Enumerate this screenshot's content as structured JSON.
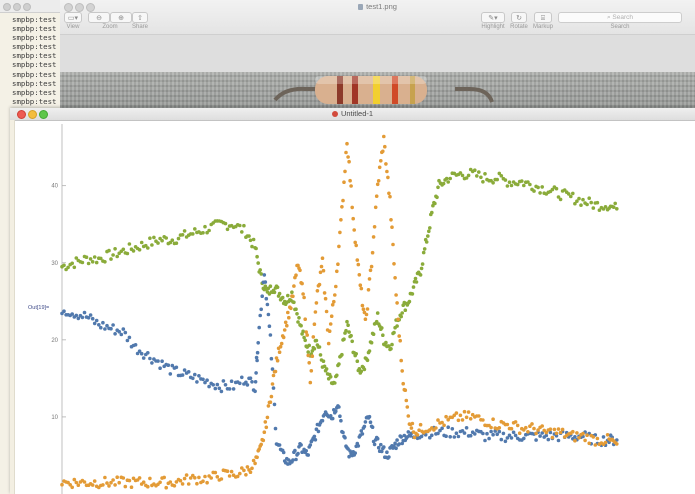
{
  "terminal": {
    "lines": [
      "smpbp:test $",
      "smpbp:test $",
      "smpbp:test $",
      "smpbp:test $",
      "smpbp:test $",
      "smpbp:test $",
      "smpbp:test $",
      "smpbp:test $",
      "smpbp:test $",
      "smpbp:test $"
    ]
  },
  "preview": {
    "title": "test1.png",
    "toolbar": {
      "view_label": "View",
      "zoom_label": "Zoom",
      "share_label": "Share",
      "highlight_label": "Highlight",
      "rotate_label": "Rotate",
      "markup_label": "Markup",
      "search_label": "Search",
      "search_placeholder": "Search"
    }
  },
  "notebook": {
    "title": "Untitled-1",
    "out_label": "Out[19]="
  },
  "chart_data": {
    "type": "scatter",
    "ylim": [
      0,
      48
    ],
    "xlim": [
      0,
      1000
    ],
    "yticks": [
      10,
      20,
      30,
      40
    ],
    "ytick_labels": [
      "10",
      "20",
      "30",
      "40"
    ],
    "colors": {
      "green": "#8aab3a",
      "blue": "#5179ad",
      "orange": "#e39b36"
    },
    "series": [
      {
        "color": "green",
        "values": [
          [
            0,
            29.5
          ],
          [
            20,
            30
          ],
          [
            40,
            30.5
          ],
          [
            60,
            30.5
          ],
          [
            80,
            31
          ],
          [
            100,
            31.5
          ],
          [
            120,
            32
          ],
          [
            140,
            32.5
          ],
          [
            160,
            33
          ],
          [
            180,
            33
          ],
          [
            200,
            33.5
          ],
          [
            220,
            34
          ],
          [
            240,
            34.5
          ],
          [
            260,
            35
          ],
          [
            280,
            35
          ],
          [
            300,
            34
          ],
          [
            315,
            32
          ],
          [
            325,
            28
          ],
          [
            335,
            26
          ],
          [
            345,
            27
          ],
          [
            355,
            26
          ],
          [
            365,
            25
          ],
          [
            375,
            26
          ],
          [
            385,
            23
          ],
          [
            395,
            20
          ],
          [
            405,
            18.5
          ],
          [
            415,
            20
          ],
          [
            425,
            17
          ],
          [
            435,
            15
          ],
          [
            445,
            14
          ],
          [
            455,
            18
          ],
          [
            465,
            22
          ],
          [
            475,
            19
          ],
          [
            485,
            16
          ],
          [
            495,
            17
          ],
          [
            505,
            20
          ],
          [
            515,
            23
          ],
          [
            525,
            20
          ],
          [
            535,
            19
          ],
          [
            545,
            22
          ],
          [
            555,
            24
          ],
          [
            565,
            25
          ],
          [
            575,
            27
          ],
          [
            585,
            29
          ],
          [
            595,
            33
          ],
          [
            605,
            37
          ],
          [
            615,
            40
          ],
          [
            630,
            41
          ],
          [
            650,
            41.5
          ],
          [
            670,
            41.5
          ],
          [
            690,
            41
          ],
          [
            710,
            41
          ],
          [
            730,
            40.5
          ],
          [
            750,
            40.5
          ],
          [
            770,
            40
          ],
          [
            790,
            39.5
          ],
          [
            810,
            39
          ],
          [
            830,
            38.5
          ],
          [
            850,
            38
          ],
          [
            870,
            37.5
          ],
          [
            890,
            37.5
          ],
          [
            905,
            37
          ]
        ]
      },
      {
        "color": "blue",
        "values": [
          [
            0,
            24
          ],
          [
            20,
            23.5
          ],
          [
            40,
            23
          ],
          [
            60,
            22
          ],
          [
            80,
            21.5
          ],
          [
            100,
            21
          ],
          [
            120,
            19
          ],
          [
            140,
            18
          ],
          [
            160,
            17
          ],
          [
            180,
            16
          ],
          [
            200,
            15.5
          ],
          [
            220,
            15
          ],
          [
            240,
            14.5
          ],
          [
            260,
            14
          ],
          [
            280,
            14
          ],
          [
            300,
            15
          ],
          [
            315,
            14
          ],
          [
            320,
            20
          ],
          [
            330,
            29
          ],
          [
            340,
            20
          ],
          [
            350,
            7
          ],
          [
            360,
            5
          ],
          [
            370,
            4
          ],
          [
            380,
            5
          ],
          [
            390,
            6
          ],
          [
            400,
            5
          ],
          [
            410,
            7
          ],
          [
            420,
            9
          ],
          [
            430,
            11
          ],
          [
            440,
            10
          ],
          [
            450,
            12
          ],
          [
            460,
            7
          ],
          [
            470,
            5
          ],
          [
            480,
            6
          ],
          [
            490,
            8
          ],
          [
            500,
            10
          ],
          [
            510,
            7
          ],
          [
            520,
            6
          ],
          [
            530,
            5
          ],
          [
            540,
            6
          ],
          [
            550,
            7
          ],
          [
            560,
            7.5
          ],
          [
            570,
            7.5
          ],
          [
            590,
            8
          ],
          [
            610,
            8
          ],
          [
            630,
            8
          ],
          [
            650,
            8
          ],
          [
            670,
            8
          ],
          [
            690,
            7.5
          ],
          [
            710,
            7.5
          ],
          [
            730,
            7.5
          ],
          [
            750,
            7.5
          ],
          [
            770,
            7.5
          ],
          [
            790,
            7.5
          ],
          [
            810,
            7.5
          ],
          [
            830,
            7.5
          ],
          [
            850,
            7.5
          ],
          [
            870,
            7
          ],
          [
            890,
            7
          ],
          [
            905,
            7
          ]
        ]
      },
      {
        "color": "orange",
        "values": [
          [
            0,
            1.5
          ],
          [
            20,
            1.5
          ],
          [
            40,
            1.5
          ],
          [
            60,
            1.5
          ],
          [
            80,
            1.5
          ],
          [
            100,
            1.5
          ],
          [
            120,
            1.5
          ],
          [
            140,
            1.5
          ],
          [
            160,
            1.5
          ],
          [
            180,
            1.5
          ],
          [
            200,
            1.8
          ],
          [
            220,
            2
          ],
          [
            240,
            2
          ],
          [
            260,
            2.5
          ],
          [
            280,
            2.5
          ],
          [
            300,
            3
          ],
          [
            315,
            4
          ],
          [
            325,
            6
          ],
          [
            335,
            10
          ],
          [
            345,
            15
          ],
          [
            355,
            19
          ],
          [
            365,
            22
          ],
          [
            375,
            25
          ],
          [
            385,
            30
          ],
          [
            395,
            25
          ],
          [
            405,
            15
          ],
          [
            415,
            25
          ],
          [
            425,
            30
          ],
          [
            435,
            20
          ],
          [
            445,
            26
          ],
          [
            455,
            35
          ],
          [
            465,
            46
          ],
          [
            475,
            36
          ],
          [
            485,
            28
          ],
          [
            495,
            22
          ],
          [
            505,
            30
          ],
          [
            515,
            40
          ],
          [
            525,
            46
          ],
          [
            535,
            38
          ],
          [
            545,
            26
          ],
          [
            555,
            16
          ],
          [
            565,
            10
          ],
          [
            575,
            8
          ],
          [
            590,
            8.5
          ],
          [
            610,
            9
          ],
          [
            630,
            9.5
          ],
          [
            650,
            10
          ],
          [
            670,
            10
          ],
          [
            690,
            9.5
          ],
          [
            710,
            9
          ],
          [
            730,
            9
          ],
          [
            750,
            8.5
          ],
          [
            770,
            8.5
          ],
          [
            790,
            8
          ],
          [
            810,
            8
          ],
          [
            830,
            7.5
          ],
          [
            850,
            7.5
          ],
          [
            870,
            7
          ],
          [
            890,
            7
          ],
          [
            905,
            6.5
          ]
        ]
      }
    ]
  }
}
